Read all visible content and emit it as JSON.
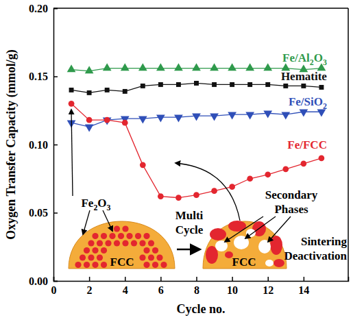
{
  "chart_data": {
    "type": "line",
    "x_label": "Cycle no.",
    "y_label": "Oxygen Transfer Capacity (mmol/g)",
    "x": [
      1,
      2,
      3,
      4,
      5,
      6,
      7,
      8,
      9,
      10,
      11,
      12,
      13,
      14,
      15
    ],
    "xlim": [
      0,
      16.5
    ],
    "xticks": [
      0,
      2,
      4,
      6,
      8,
      10,
      12,
      14
    ],
    "ylim": [
      0,
      0.2
    ],
    "yticks": [
      {
        "value": 0,
        "label": "0.00"
      },
      {
        "value": 0.05,
        "label": "0.05"
      },
      {
        "value": 0.1,
        "label": "0.10"
      },
      {
        "value": 0.15,
        "label": "0.15"
      },
      {
        "value": 0.2,
        "label": "0.20"
      }
    ],
    "series": [
      {
        "name": "Fe/Al2O3",
        "color": "#2f9a4c",
        "marker": "triangle-up",
        "line_style": "solid",
        "values": [
          0.155,
          0.154,
          0.156,
          0.156,
          0.156,
          0.156,
          0.156,
          0.156,
          0.156,
          0.156,
          0.156,
          0.156,
          0.156,
          0.155,
          0.156
        ]
      },
      {
        "name": "Hematite",
        "color": "#111111",
        "marker": "square",
        "line_style": "solid",
        "values": [
          0.14,
          0.138,
          0.14,
          0.139,
          0.143,
          0.144,
          0.144,
          0.145,
          0.144,
          0.144,
          0.144,
          0.144,
          0.143,
          0.143,
          0.142
        ]
      },
      {
        "name": "Fe/SiO2",
        "color": "#2f4fb8",
        "marker": "triangle-down",
        "line_style": "solid",
        "values": [
          0.116,
          0.113,
          0.118,
          0.119,
          0.119,
          0.12,
          0.12,
          0.121,
          0.121,
          0.122,
          0.122,
          0.123,
          0.122,
          0.124,
          0.124
        ]
      },
      {
        "name": "Fe/FCC",
        "color": "#e3262f",
        "marker": "circle",
        "line_style": "solid",
        "values": [
          0.13,
          0.118,
          0.118,
          0.116,
          0.085,
          0.062,
          0.061,
          0.063,
          0.066,
          0.069,
          0.075,
          0.078,
          0.082,
          0.086,
          0.09
        ]
      }
    ],
    "annotations": [
      "Fe2O3",
      "FCC",
      "Multi Cycle",
      "Secondary Phases",
      "FCC",
      "Sintering Deactivation"
    ]
  }
}
